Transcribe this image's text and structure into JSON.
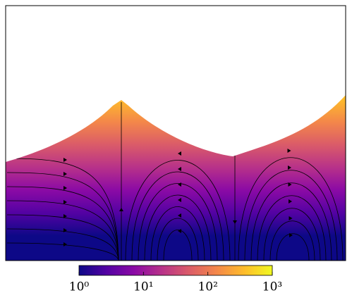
{
  "chart_data": {
    "type": "streamplot",
    "colorbar": {
      "scale": "log",
      "lim": [
        1,
        1000
      ],
      "ticks": [
        {
          "value": 1,
          "label": "10⁰"
        },
        {
          "value": 10,
          "label": "10¹"
        },
        {
          "value": 100,
          "label": "10²"
        },
        {
          "value": 1000,
          "label": "10³"
        }
      ],
      "colormap": [
        "#0d0887",
        "#5302a3",
        "#8b0aa5",
        "#b83289",
        "#db5c68",
        "#f48849",
        "#febd2a",
        "#f0f921"
      ]
    }
  }
}
